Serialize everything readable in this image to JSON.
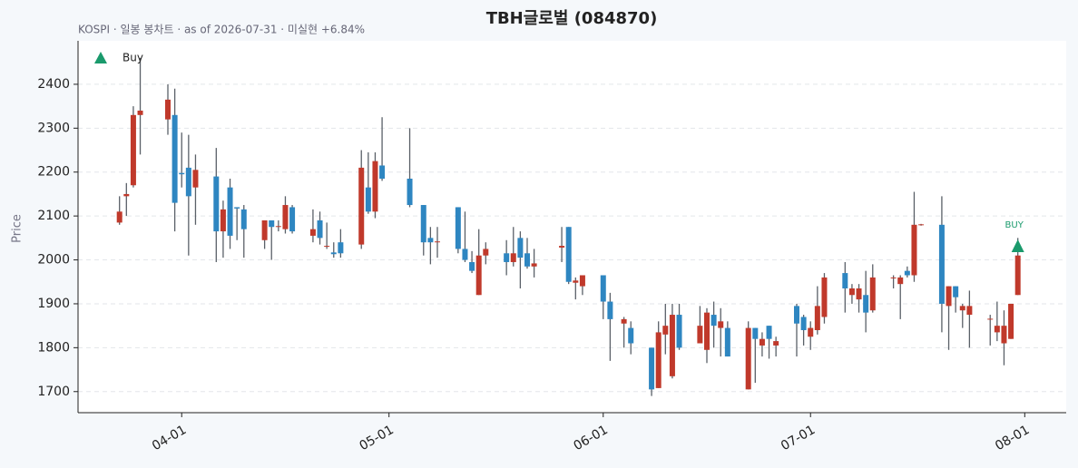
{
  "chart_data": {
    "type": "candlestick",
    "title": "TBH글로벌 (084870)",
    "subtitle": "KOSPI · 일봉 봉차트 · as of 2026-07-31 · 미실현 +6.84%",
    "y_label": "Price",
    "x": [
      "03-23",
      "03-24",
      "03-25",
      "03-26",
      "03-30",
      "03-31",
      "04-01",
      "04-02",
      "04-03",
      "04-06",
      "04-07",
      "04-08",
      "04-09",
      "04-10",
      "04-13",
      "04-14",
      "04-15",
      "04-16",
      "04-17",
      "04-20",
      "04-21",
      "04-22",
      "04-23",
      "04-24",
      "04-27",
      "04-28",
      "04-29",
      "04-30",
      "05-04",
      "05-06",
      "05-07",
      "05-08",
      "05-11",
      "05-12",
      "05-13",
      "05-14",
      "05-15",
      "05-18",
      "05-19",
      "05-20",
      "05-21",
      "05-22",
      "05-26",
      "05-27",
      "05-28",
      "05-29",
      "06-01",
      "06-02",
      "06-04",
      "06-05",
      "06-08",
      "06-09",
      "06-10",
      "06-11",
      "06-12",
      "06-15",
      "06-16",
      "06-17",
      "06-18",
      "06-19",
      "06-22",
      "06-23",
      "06-24",
      "06-25",
      "06-26",
      "06-29",
      "06-30",
      "07-01",
      "07-02",
      "07-03",
      "07-06",
      "07-07",
      "07-08",
      "07-09",
      "07-10",
      "07-13",
      "07-14",
      "07-15",
      "07-16",
      "07-17",
      "07-20",
      "07-21",
      "07-22",
      "07-23",
      "07-24",
      "07-27",
      "07-28",
      "07-29",
      "07-30",
      "07-31"
    ],
    "open": [
      2085,
      2145,
      2170,
      2330,
      2320,
      2330,
      2198,
      2210,
      2165,
      2190,
      2065,
      2165,
      2120,
      2115,
      2045,
      2090,
      2075,
      2070,
      2120,
      2055,
      2090,
      2030,
      2017,
      2040,
      2035,
      2165,
      2110,
      2215,
      2185,
      2125,
      2050,
      2040,
      2120,
      2025,
      1995,
      1920,
      2010,
      2015,
      1995,
      2050,
      2015,
      1985,
      2028,
      2075,
      1948,
      1940,
      1965,
      1905,
      1855,
      1845,
      1800,
      1708,
      1830,
      1735,
      1875,
      1810,
      1795,
      1875,
      1845,
      1845,
      1705,
      1845,
      1805,
      1850,
      1805,
      1895,
      1870,
      1825,
      1840,
      1870,
      1970,
      1920,
      1910,
      1920,
      1885,
      1958,
      1945,
      1975,
      1965,
      2079,
      2080,
      1895,
      1940,
      1885,
      1875,
      1865,
      1835,
      1810,
      1820,
      1920
    ],
    "high": [
      2145,
      2175,
      2350,
      2460,
      2400,
      2390,
      2290,
      2285,
      2240,
      2255,
      2135,
      2185,
      2120,
      2125,
      2090,
      2090,
      2090,
      2145,
      2125,
      2115,
      2110,
      2085,
      2040,
      2070,
      2250,
      2245,
      2245,
      2325,
      2300,
      2125,
      2075,
      2075,
      2120,
      2110,
      2020,
      2070,
      2040,
      2045,
      2075,
      2065,
      2050,
      2025,
      2075,
      2075,
      1960,
      1965,
      1965,
      1925,
      1870,
      1860,
      1800,
      1860,
      1900,
      1900,
      1900,
      1895,
      1890,
      1905,
      1890,
      1860,
      1860,
      1845,
      1835,
      1850,
      1825,
      1900,
      1875,
      1860,
      1940,
      1970,
      1995,
      1945,
      1945,
      1975,
      1990,
      1965,
      1965,
      1985,
      2155,
      2082,
      2145,
      1940,
      1940,
      1900,
      1930,
      1875,
      1905,
      1885,
      1900,
      2050
    ],
    "low": [
      2080,
      2100,
      2165,
      2240,
      2285,
      2065,
      2165,
      2010,
      2080,
      1995,
      2005,
      2025,
      2045,
      2005,
      2025,
      2000,
      2065,
      2060,
      2060,
      2040,
      2035,
      2025,
      2005,
      2005,
      2025,
      2105,
      2095,
      2180,
      2120,
      2010,
      1990,
      2005,
      2015,
      1995,
      1970,
      1920,
      1990,
      1965,
      1985,
      1935,
      1980,
      1960,
      1995,
      1945,
      1910,
      1920,
      1865,
      1770,
      1800,
      1785,
      1690,
      1708,
      1785,
      1730,
      1795,
      1810,
      1765,
      1800,
      1780,
      1780,
      1705,
      1720,
      1780,
      1775,
      1780,
      1780,
      1805,
      1795,
      1830,
      1855,
      1880,
      1900,
      1880,
      1835,
      1880,
      1935,
      1865,
      1960,
      1950,
      2078,
      1835,
      1795,
      1880,
      1845,
      1800,
      1805,
      1815,
      1760,
      1820,
      1920
    ],
    "close": [
      2110,
      2150,
      2330,
      2340,
      2365,
      2130,
      2195,
      2145,
      2205,
      2065,
      2115,
      2055,
      2117,
      2070,
      2090,
      2075,
      2077,
      2125,
      2065,
      2070,
      2050,
      2032,
      2013,
      2015,
      2210,
      2110,
      2225,
      2185,
      2125,
      2040,
      2040,
      2042,
      2025,
      2000,
      1975,
      2010,
      2025,
      1995,
      2015,
      2005,
      1985,
      1992,
      2032,
      1950,
      1953,
      1965,
      1905,
      1865,
      1865,
      1810,
      1705,
      1835,
      1850,
      1875,
      1800,
      1850,
      1880,
      1850,
      1860,
      1780,
      1845,
      1820,
      1820,
      1820,
      1815,
      1855,
      1840,
      1845,
      1895,
      1960,
      1935,
      1935,
      1935,
      1880,
      1960,
      1960,
      1960,
      1965,
      2080,
      2081,
      1900,
      1940,
      1915,
      1895,
      1895,
      1866,
      1850,
      1850,
      1900,
      2010
    ],
    "up_color": "#c0392b",
    "down_color": "#2e86c1",
    "wick_color": "#5a6068",
    "markers": [
      {
        "name": "Buy",
        "x": "07-31",
        "value": 2030,
        "label": "BUY",
        "color": "#1a9a6c"
      }
    ],
    "legend": "upper left",
    "xlim": [
      "03-17",
      "08-07"
    ],
    "xticks": [
      "04-01",
      "05-01",
      "06-01",
      "07-01",
      "08-01"
    ],
    "ylim": [
      1652,
      2499
    ],
    "yticks": [
      1700,
      1800,
      1900,
      2000,
      2100,
      2200,
      2300,
      2400
    ],
    "grid": true
  }
}
